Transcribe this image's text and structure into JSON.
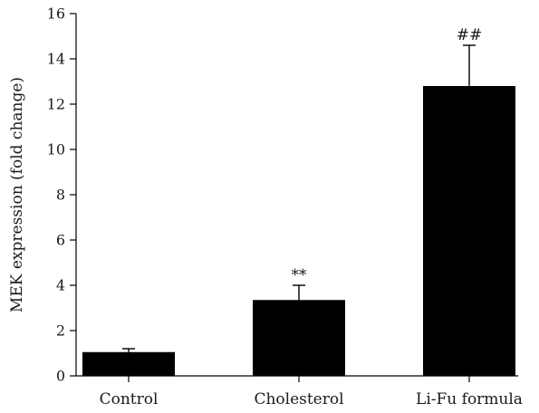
{
  "chart_data": {
    "type": "bar",
    "ylabel": "MEK expression (fold change)",
    "xlabel": "",
    "ylim": [
      0,
      16
    ],
    "yticks": [
      "0",
      "2",
      "4",
      "6",
      "8",
      "10",
      "12",
      "14",
      "16"
    ],
    "categories": [
      "Control",
      "Cholesterol",
      "Li-Fu formula"
    ],
    "values": [
      1.05,
      3.35,
      12.8
    ],
    "error_upper": [
      0.15,
      0.65,
      1.8
    ],
    "annotations": [
      "",
      "**",
      "##"
    ],
    "bar_color": "#000000",
    "grid": false
  }
}
